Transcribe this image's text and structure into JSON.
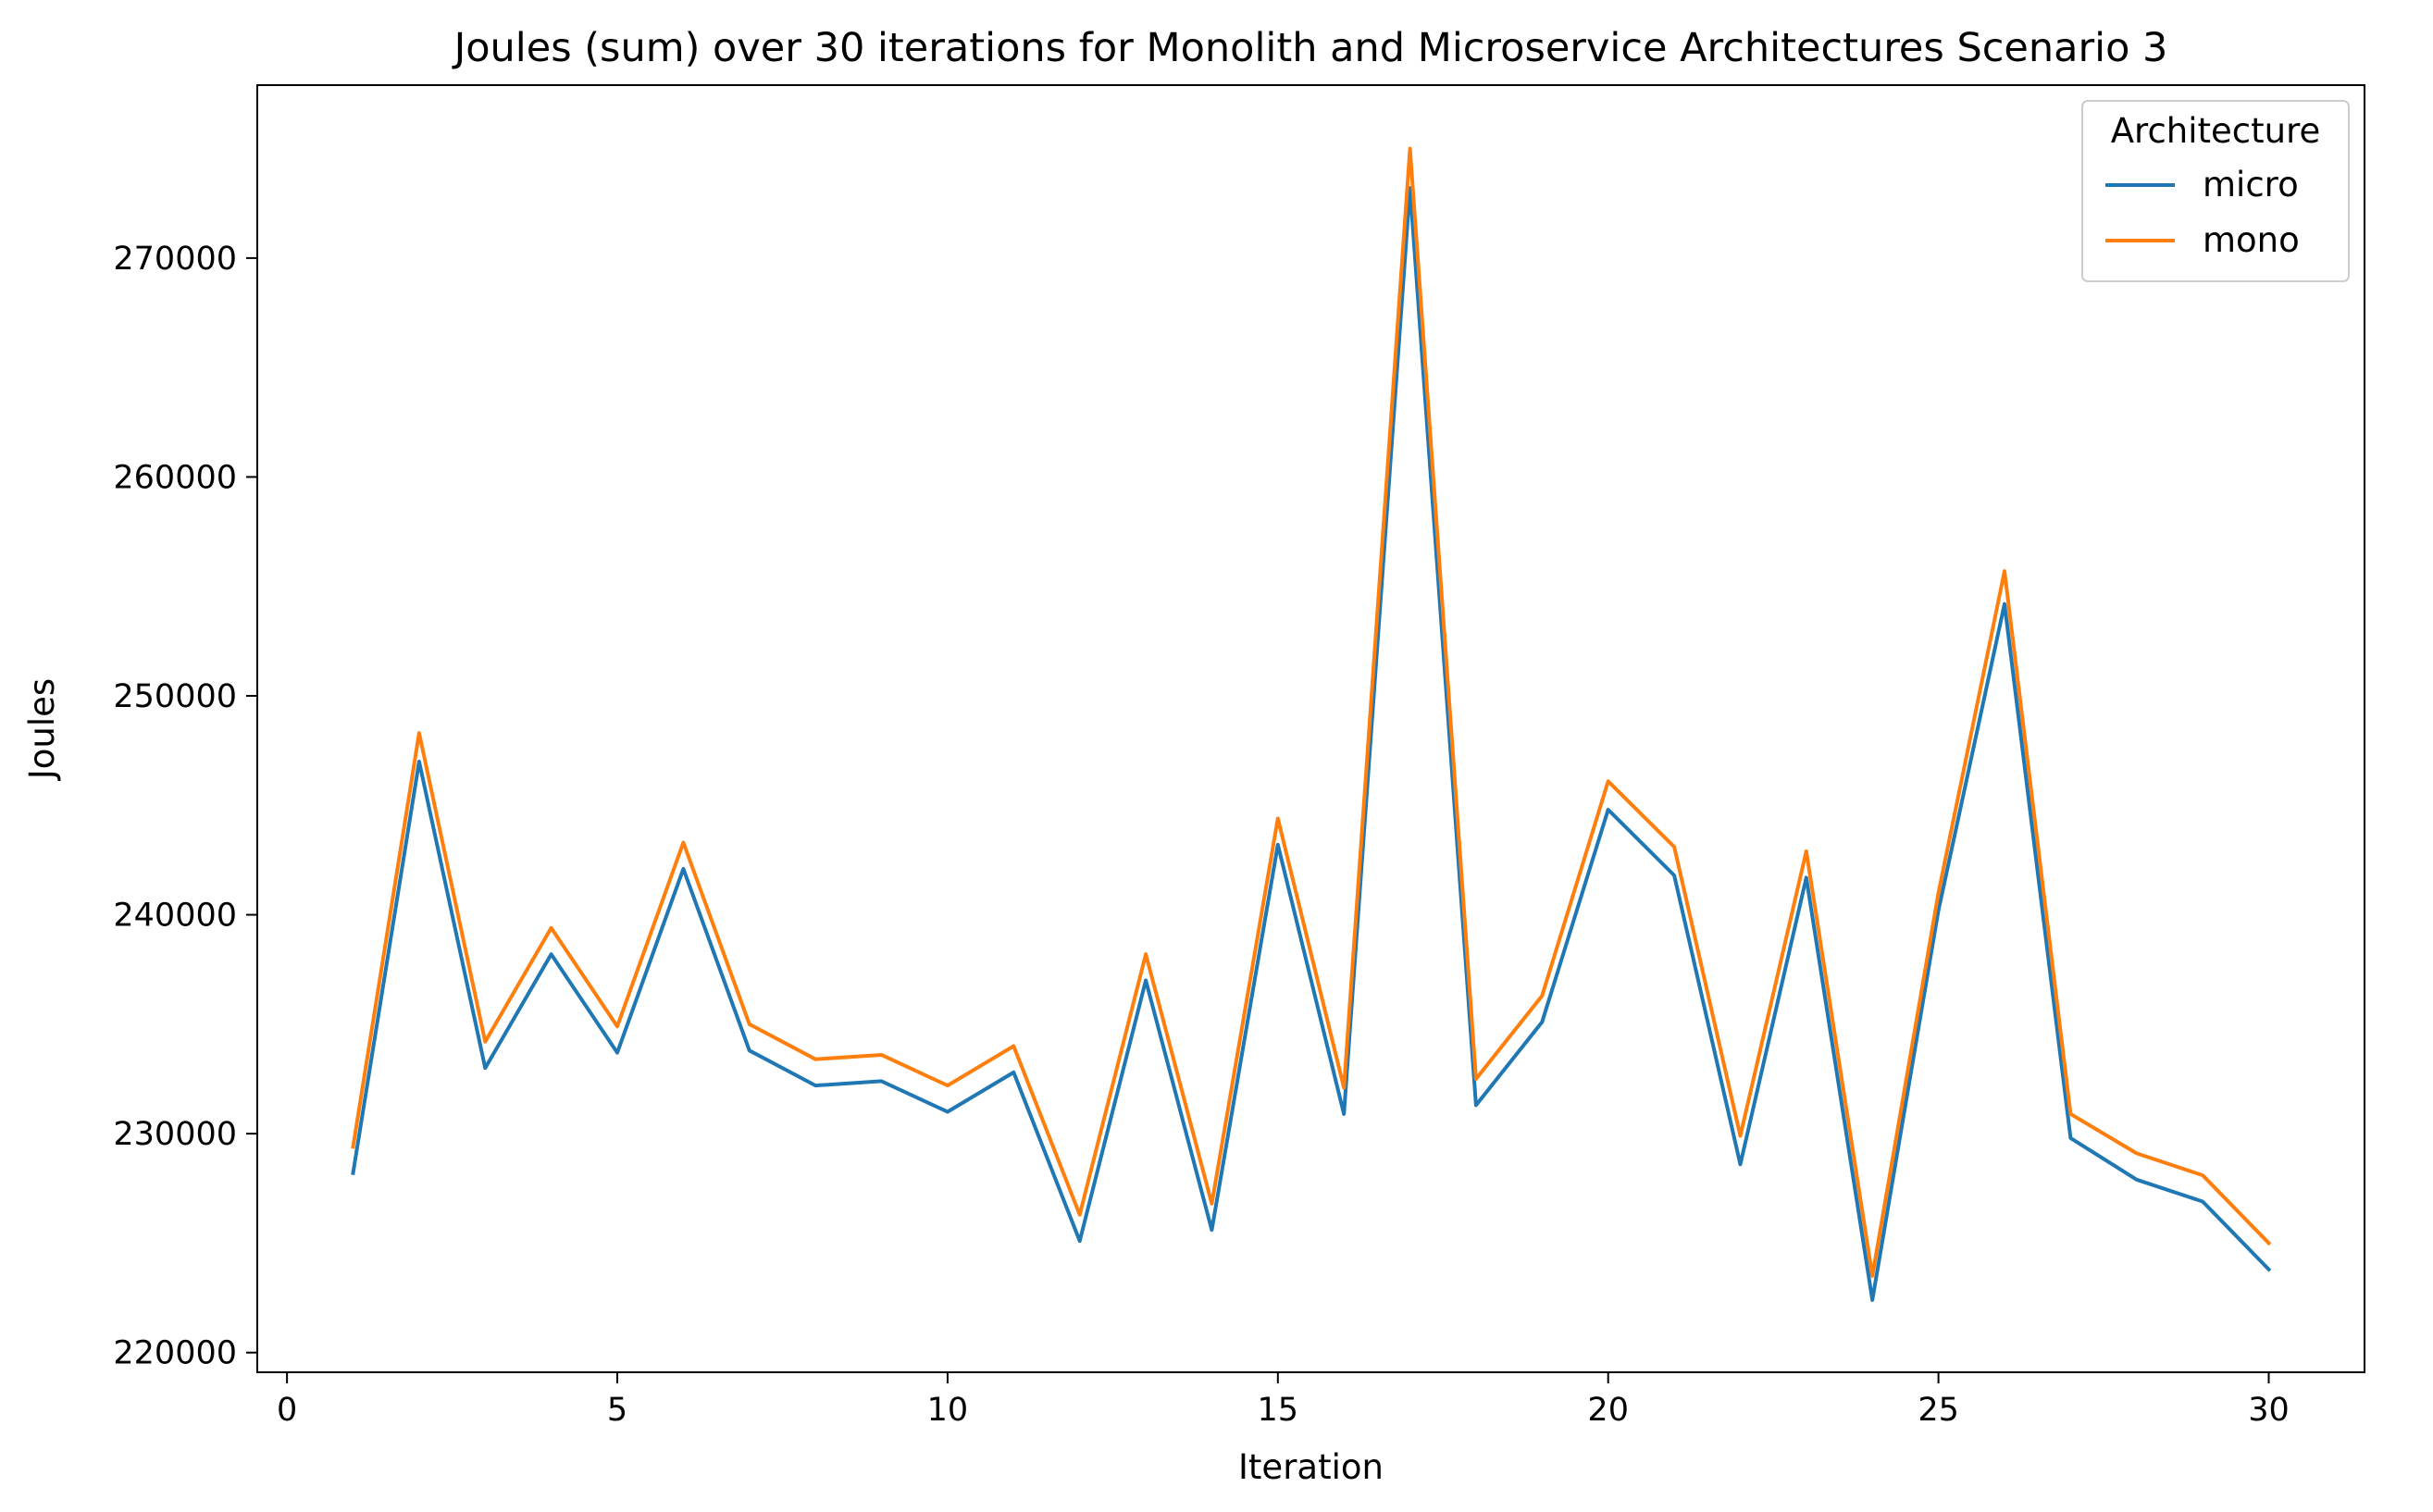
{
  "chart_data": {
    "type": "line",
    "title": "Joules (sum) over 30 iterations for Monolith and Microservice Architectures Scenario 3",
    "xlabel": "Iteration",
    "ylabel": "Joules",
    "xlim": [
      -0.45,
      31.45
    ],
    "ylim": [
      219100,
      277900
    ],
    "xticks": [
      0,
      5,
      10,
      15,
      20,
      25,
      30
    ],
    "yticks": [
      220000,
      230000,
      240000,
      250000,
      260000,
      270000
    ],
    "grid": false,
    "legend": {
      "title": "Architecture",
      "placement": "top-right"
    },
    "x": [
      1,
      2,
      3,
      4,
      5,
      6,
      7,
      8,
      9,
      10,
      11,
      12,
      13,
      14,
      15,
      16,
      17,
      18,
      19,
      20,
      21,
      22,
      23,
      24,
      25,
      26,
      27,
      28,
      29,
      30
    ],
    "series": [
      {
        "name": "micro",
        "color": "#1f77b4",
        "values": [
          228200,
          247000,
          233000,
          238200,
          233700,
          242100,
          233800,
          232200,
          232400,
          231000,
          232800,
          225100,
          237000,
          225600,
          243200,
          230900,
          273200,
          231300,
          235100,
          244800,
          241800,
          228600,
          241700,
          222400,
          240200,
          254200,
          229800,
          227900,
          226900,
          223800
        ]
      },
      {
        "name": "mono",
        "color": "#ff7f0e",
        "values": [
          229400,
          248300,
          234200,
          239400,
          234900,
          243300,
          235000,
          233400,
          233600,
          232200,
          234000,
          226300,
          238200,
          226800,
          244400,
          232100,
          275000,
          232500,
          236300,
          246100,
          243100,
          229900,
          242900,
          223500,
          241000,
          255700,
          230900,
          229100,
          228100,
          225000
        ]
      }
    ]
  }
}
